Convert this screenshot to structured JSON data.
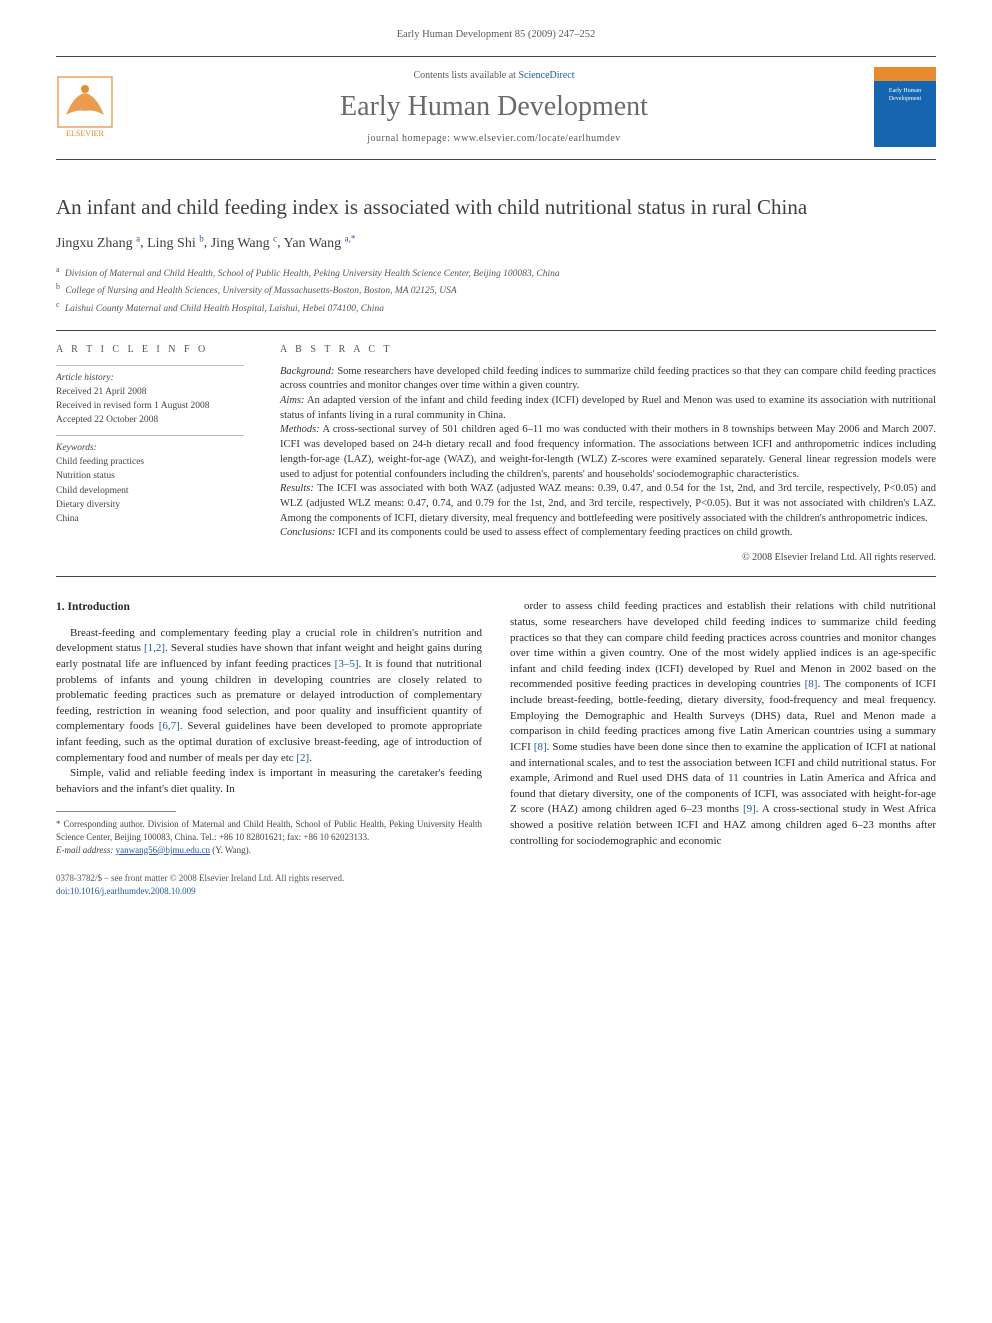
{
  "journal_ref": "Early Human Development 85 (2009) 247–252",
  "header": {
    "contents_prefix": "Contents lists available at ",
    "contents_link": "ScienceDirect",
    "journal_name": "Early Human Development",
    "homepage": "journal homepage: www.elsevier.com/locate/earlhumdev",
    "cover_text": "Early Human Development",
    "cover_top_color": "#e88b2f",
    "cover_body_color": "#1665b0"
  },
  "title": "An infant and child feeding index is associated with child nutritional status in rural China",
  "authors_html": [
    {
      "name": "Jingxu Zhang",
      "sup": "a"
    },
    {
      "name": "Ling Shi",
      "sup": "b"
    },
    {
      "name": "Jing Wang",
      "sup": "c"
    },
    {
      "name": "Yan Wang",
      "sup": "a,*"
    }
  ],
  "affiliations": [
    {
      "key": "a",
      "text": "Division of Maternal and Child Health, School of Public Health, Peking University Health Science Center, Beijing 100083, China"
    },
    {
      "key": "b",
      "text": "College of Nursing and Health Sciences, University of Massachusetts-Boston, Boston, MA 02125, USA"
    },
    {
      "key": "c",
      "text": "Laishui County Maternal and Child Health Hospital, Laishui, Hebei 074100, China"
    }
  ],
  "info": {
    "head": "A R T I C L E   I N F O",
    "history_label": "Article history:",
    "history": [
      "Received 21 April 2008",
      "Received in revised form 1 August 2008",
      "Accepted 22 October 2008"
    ],
    "keywords_label": "Keywords:",
    "keywords": [
      "Child feeding practices",
      "Nutrition status",
      "Child development",
      "Dietary diversity",
      "China"
    ]
  },
  "abstract": {
    "head": "A B S T R A C T",
    "sections": [
      {
        "label": "Background:",
        "text": " Some researchers have developed child feeding indices to summarize child feeding practices so that they can compare child feeding practices across countries and monitor changes over time within a given country."
      },
      {
        "label": "Aims:",
        "text": " An adapted version of the infant and child feeding index (ICFI) developed by Ruel and Menon was used to examine its association with nutritional status of infants living in a rural community in China."
      },
      {
        "label": "Methods:",
        "text": " A cross-sectional survey of 501 children aged 6–11 mo was conducted with their mothers in 8 townships between May 2006 and March 2007. ICFI was developed based on 24-h dietary recall and food frequency information. The associations between ICFI and anthropometric indices including length-for-age (LAZ), weight-for-age (WAZ), and weight-for-length (WLZ) Z-scores were examined separately. General linear regression models were used to adjust for potential confounders including the children's, parents' and households' sociodemographic characteristics."
      },
      {
        "label": "Results:",
        "text": " The ICFI was associated with both WAZ (adjusted WAZ means: 0.39, 0.47, and 0.54 for the 1st, 2nd, and 3rd tercile, respectively, P<0.05) and WLZ (adjusted WLZ means: 0.47, 0.74, and 0.79 for the 1st, 2nd, and 3rd tercile, respectively, P<0.05). But it was not associated with children's LAZ. Among the components of ICFI, dietary diversity, meal frequency and bottlefeeding were positively associated with the children's anthropometric indices."
      },
      {
        "label": "Conclusions:",
        "text": " ICFI and its components could be used to assess effect of complementary feeding practices on child growth."
      }
    ],
    "copyright": "© 2008 Elsevier Ireland Ltd. All rights reserved."
  },
  "body": {
    "section_number": "1.",
    "section_title": "Introduction",
    "left_paras": [
      "Breast-feeding and complementary feeding play a crucial role in children's nutrition and development status [1,2]. Several studies have shown that infant weight and height gains during early postnatal life are influenced by infant feeding practices [3–5]. It is found that nutritional problems of infants and young children in developing countries are closely related to problematic feeding practices such as premature or delayed introduction of complementary feeding, restriction in weaning food selection, and poor quality and insufficient quantity of complementary foods [6,7]. Several guidelines have been developed to promote appropriate infant feeding, such as the optimal duration of exclusive breast-feeding, age of introduction of complementary food and number of meals per day etc [2].",
      "Simple, valid and reliable feeding index is important in measuring the caretaker's feeding behaviors and the infant's diet quality. In"
    ],
    "right_paras": [
      "order to assess child feeding practices and establish their relations with child nutritional status, some researchers have developed child feeding indices to summarize child feeding practices so that they can compare child feeding practices across countries and monitor changes over time within a given country. One of the most widely applied indices is an age-specific infant and child feeding index (ICFI) developed by Ruel and Menon in 2002 based on the recommended positive feeding practices in developing countries [8]. The components of ICFI include breast-feeding, bottle-feeding, dietary diversity, food-frequency and meal frequency. Employing the Demographic and Health Surveys (DHS) data, Ruel and Menon made a comparison in child feeding practices among five Latin American countries using a summary ICFI [8]. Some studies have been done since then to examine the application of ICFI at national and international scales, and to test the association between ICFI and child nutritional status. For example, Arimond and Ruel used DHS data of 11 countries in Latin America and Africa and found that dietary diversity, one of the components of ICFI, was associated with height-for-age Z score (HAZ) among children aged 6–23 months [9]. A cross-sectional study in West Africa showed a positive relation between ICFI and HAZ among children aged 6–23 months after controlling for sociodemographic and economic"
    ]
  },
  "footnote": {
    "corr": "* Corresponding author. Division of Maternal and Child Health, School of Public Health, Peking University Health Science Center, Beijing 100083, China. Tel.: +86 10 82801621; fax: +86 10 62023133.",
    "email_label": "E-mail address:",
    "email": "yanwang56@bjmu.edu.cn",
    "email_suffix": "(Y. Wang)."
  },
  "footer": {
    "issn": "0378-3782/$ – see front matter © 2008 Elsevier Ireland Ltd. All rights reserved.",
    "doi": "doi:10.1016/j.earlhumdev.2008.10.009"
  },
  "colors": {
    "link": "#2059a6",
    "text": "#2a2a2a",
    "muted": "#5a5a5a",
    "rule": "#444444"
  }
}
